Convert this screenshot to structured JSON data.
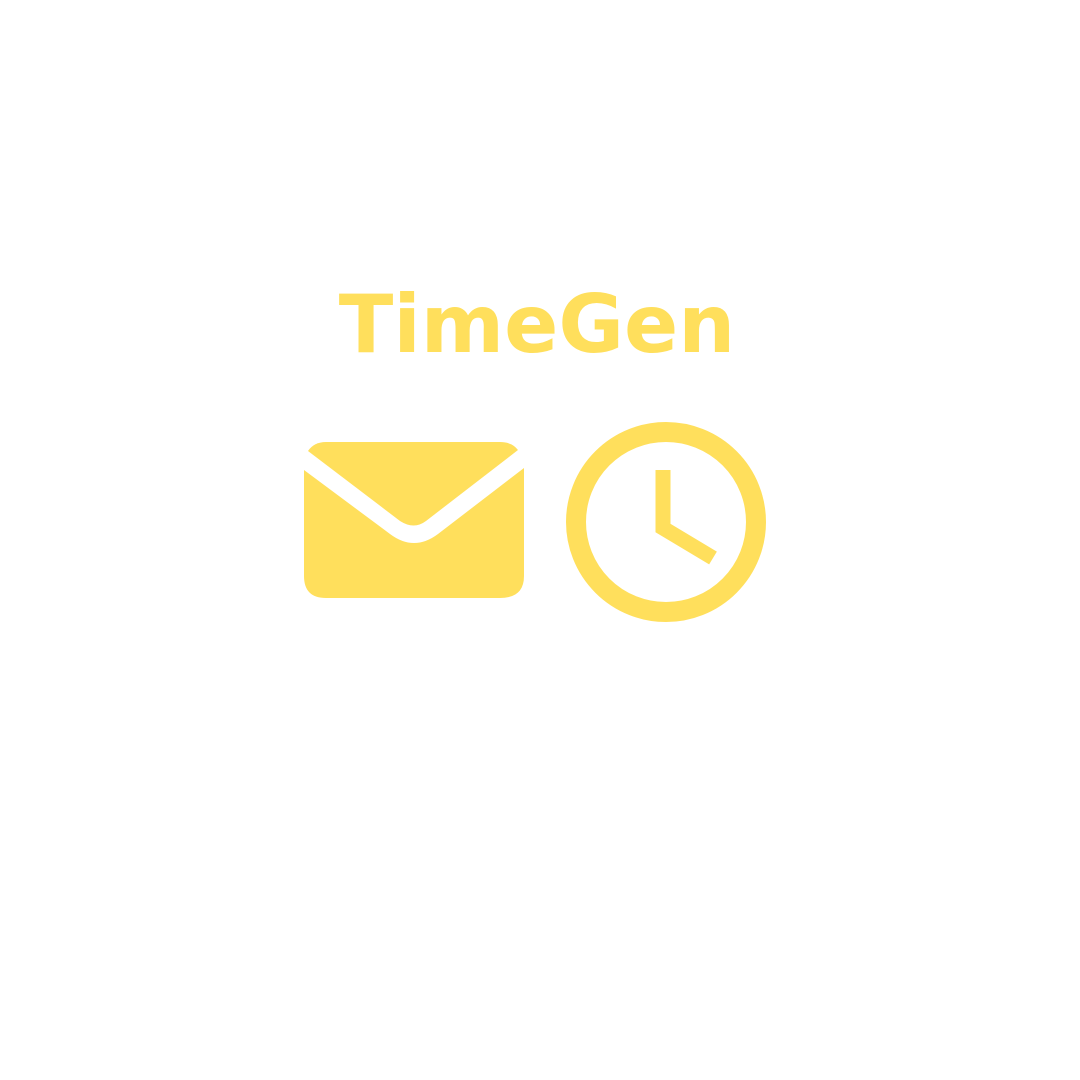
{
  "brand": {
    "name": "TimeGen",
    "accent_color": "#FFDF5C",
    "background_color": "#FFFFFF"
  },
  "icons": {
    "left": "envelope-icon",
    "right": "clock-icon"
  }
}
